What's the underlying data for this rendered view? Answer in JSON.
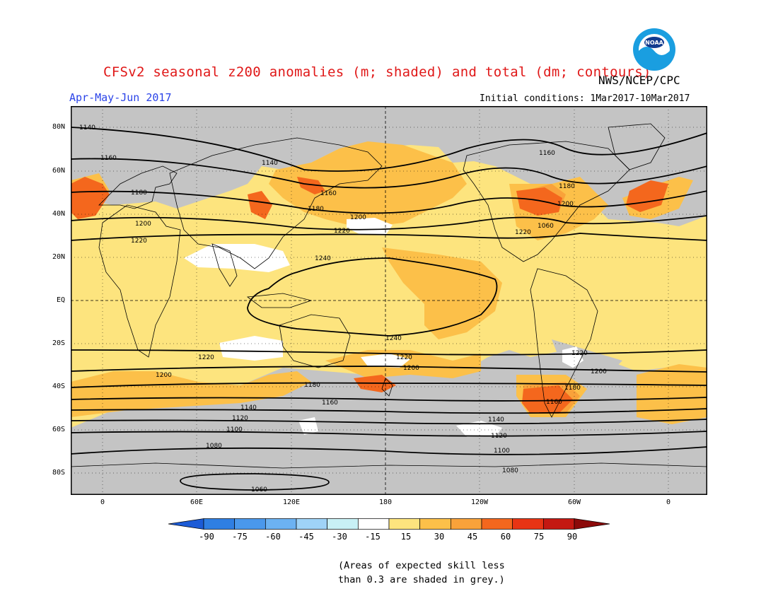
{
  "title": "CFSv2 seasonal z200 anomalies (m; shaded) and total (dm; contours)",
  "agency": "NWS/NCEP/CPC",
  "logo_text": "NOAA",
  "season": "Apr-May-Jun 2017",
  "initial_conditions": "Initial conditions: 1Mar2017-10Mar2017",
  "lat_labels": [
    "80N",
    "60N",
    "40N",
    "20N",
    "EQ",
    "20S",
    "40S",
    "60S",
    "80S"
  ],
  "lon_labels": [
    "0",
    "60E",
    "120E",
    "180",
    "120W",
    "60W",
    "0"
  ],
  "colorbar": {
    "labels": [
      "-90",
      "-75",
      "-60",
      "-45",
      "-30",
      "-15",
      "15",
      "30",
      "45",
      "60",
      "75",
      "90"
    ],
    "colors": [
      "#1c5bd6",
      "#2f7fe3",
      "#4a98ec",
      "#6cb2f2",
      "#9fd3f7",
      "#c8f0f5",
      "#ffffff",
      "#fde47e",
      "#fcc049",
      "#f9a23a",
      "#f4671d",
      "#e83414",
      "#c41812",
      "#8c0a0a"
    ]
  },
  "footnote": {
    "line1": "(Areas of expected skill less",
    "line2": "than 0.3 are shaded in grey.)"
  },
  "contour_labels": [
    "1140",
    "1160",
    "1180",
    "1200",
    "1220",
    "1240",
    "1220",
    "1200",
    "1180",
    "1160",
    "1140",
    "1120",
    "1100",
    "1080",
    "1060",
    "1140",
    "1160",
    "1180",
    "1200",
    "1220",
    "1240",
    "1220",
    "1200",
    "1180",
    "1160",
    "1140",
    "1120",
    "1100",
    "1080",
    "1160",
    "1180",
    "1200",
    "1220",
    "1200",
    "1220",
    "1060"
  ],
  "colors": {
    "grey_skill": "#c4c4c4",
    "anom_15_30": "#fde47e",
    "anom_30_45": "#fcc049",
    "anom_45_60": "#f9a23a",
    "anom_60_75": "#f4671d",
    "anom_white": "#ffffff",
    "title_red": "#e01818",
    "season_blue": "#2a43e8"
  }
}
